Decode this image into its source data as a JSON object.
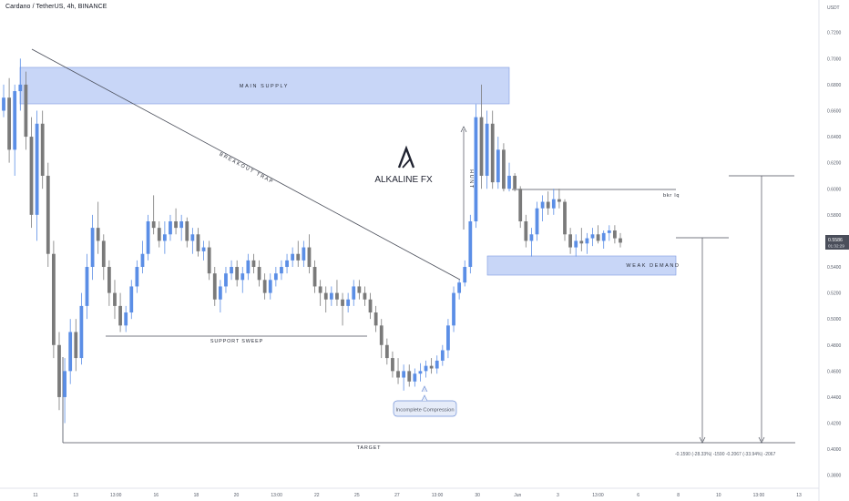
{
  "header": {
    "title": "Cardano / TetherUS, 4h, BINANCE"
  },
  "axis": {
    "currency": "USDT"
  },
  "chart_data": {
    "type": "candlestick",
    "symbol": "Cardano / TetherUS",
    "interval": "4h",
    "exchange": "BINANCE",
    "ylim": [
      0.37,
      0.745
    ],
    "y_ticks": [
      "0.3800",
      "0.4000",
      "0.4200",
      "0.4400",
      "0.4600",
      "0.4800",
      "0.5000",
      "0.5200",
      "0.5400",
      "0.5600",
      "0.5800",
      "0.6000",
      "0.6200",
      "0.6400",
      "0.6600",
      "0.6800",
      "0.7000",
      "0.7200"
    ],
    "x_ticks": [
      "11",
      "13",
      "13:00",
      "16",
      "18",
      "20",
      "13:00",
      "22",
      "25",
      "27",
      "13:00",
      "30",
      "Jun",
      "3",
      "13:00",
      "6",
      "8",
      "10",
      "13:00",
      "13"
    ],
    "last_price": {
      "price": "0.5586",
      "countdown": "01:32:29",
      "value": 0.5586
    },
    "ohlc": [
      [
        0.66,
        0.68,
        0.655,
        0.67
      ],
      [
        0.67,
        0.685,
        0.62,
        0.63
      ],
      [
        0.63,
        0.68,
        0.61,
        0.675
      ],
      [
        0.675,
        0.7,
        0.66,
        0.68
      ],
      [
        0.68,
        0.69,
        0.63,
        0.64
      ],
      [
        0.64,
        0.655,
        0.57,
        0.58
      ],
      [
        0.58,
        0.66,
        0.56,
        0.65
      ],
      [
        0.65,
        0.66,
        0.6,
        0.61
      ],
      [
        0.61,
        0.62,
        0.54,
        0.55
      ],
      [
        0.55,
        0.56,
        0.47,
        0.48
      ],
      [
        0.48,
        0.49,
        0.43,
        0.44
      ],
      [
        0.44,
        0.47,
        0.42,
        0.46
      ],
      [
        0.46,
        0.5,
        0.45,
        0.49
      ],
      [
        0.49,
        0.5,
        0.46,
        0.47
      ],
      [
        0.47,
        0.52,
        0.465,
        0.51
      ],
      [
        0.51,
        0.55,
        0.5,
        0.54
      ],
      [
        0.54,
        0.58,
        0.53,
        0.57
      ],
      [
        0.57,
        0.59,
        0.55,
        0.56
      ],
      [
        0.56,
        0.565,
        0.53,
        0.54
      ],
      [
        0.54,
        0.545,
        0.51,
        0.52
      ],
      [
        0.52,
        0.53,
        0.5,
        0.51
      ],
      [
        0.51,
        0.52,
        0.49,
        0.495
      ],
      [
        0.495,
        0.51,
        0.49,
        0.505
      ],
      [
        0.505,
        0.53,
        0.5,
        0.525
      ],
      [
        0.525,
        0.545,
        0.52,
        0.54
      ],
      [
        0.54,
        0.56,
        0.535,
        0.55
      ],
      [
        0.55,
        0.58,
        0.545,
        0.575
      ],
      [
        0.575,
        0.595,
        0.565,
        0.57
      ],
      [
        0.57,
        0.575,
        0.555,
        0.56
      ],
      [
        0.56,
        0.575,
        0.55,
        0.565
      ],
      [
        0.565,
        0.58,
        0.56,
        0.575
      ],
      [
        0.575,
        0.585,
        0.565,
        0.57
      ],
      [
        0.57,
        0.58,
        0.56,
        0.575
      ],
      [
        0.575,
        0.578,
        0.555,
        0.56
      ],
      [
        0.56,
        0.57,
        0.55,
        0.565
      ],
      [
        0.565,
        0.57,
        0.548,
        0.552
      ],
      [
        0.552,
        0.56,
        0.545,
        0.555
      ],
      [
        0.555,
        0.56,
        0.53,
        0.535
      ],
      [
        0.535,
        0.54,
        0.51,
        0.515
      ],
      [
        0.515,
        0.53,
        0.505,
        0.525
      ],
      [
        0.525,
        0.54,
        0.52,
        0.535
      ],
      [
        0.535,
        0.545,
        0.53,
        0.54
      ],
      [
        0.54,
        0.545,
        0.525,
        0.53
      ],
      [
        0.53,
        0.54,
        0.52,
        0.535
      ],
      [
        0.535,
        0.55,
        0.53,
        0.545
      ],
      [
        0.545,
        0.55,
        0.535,
        0.54
      ],
      [
        0.54,
        0.545,
        0.525,
        0.53
      ],
      [
        0.53,
        0.535,
        0.515,
        0.52
      ],
      [
        0.52,
        0.535,
        0.515,
        0.53
      ],
      [
        0.53,
        0.54,
        0.525,
        0.535
      ],
      [
        0.535,
        0.545,
        0.53,
        0.54
      ],
      [
        0.54,
        0.55,
        0.535,
        0.545
      ],
      [
        0.545,
        0.555,
        0.54,
        0.55
      ],
      [
        0.55,
        0.56,
        0.54,
        0.545
      ],
      [
        0.545,
        0.56,
        0.54,
        0.555
      ],
      [
        0.555,
        0.565,
        0.535,
        0.54
      ],
      [
        0.54,
        0.545,
        0.52,
        0.525
      ],
      [
        0.525,
        0.53,
        0.51,
        0.52
      ],
      [
        0.52,
        0.525,
        0.505,
        0.515
      ],
      [
        0.515,
        0.525,
        0.51,
        0.52
      ],
      [
        0.52,
        0.53,
        0.51,
        0.515
      ],
      [
        0.515,
        0.52,
        0.495,
        0.51
      ],
      [
        0.51,
        0.52,
        0.505,
        0.515
      ],
      [
        0.515,
        0.53,
        0.51,
        0.525
      ],
      [
        0.525,
        0.53,
        0.515,
        0.52
      ],
      [
        0.52,
        0.525,
        0.51,
        0.515
      ],
      [
        0.515,
        0.52,
        0.5,
        0.505
      ],
      [
        0.505,
        0.51,
        0.49,
        0.495
      ],
      [
        0.495,
        0.5,
        0.47,
        0.48
      ],
      [
        0.48,
        0.485,
        0.465,
        0.47
      ],
      [
        0.47,
        0.475,
        0.455,
        0.46
      ],
      [
        0.46,
        0.47,
        0.45,
        0.455
      ],
      [
        0.455,
        0.465,
        0.445,
        0.46
      ],
      [
        0.46,
        0.465,
        0.448,
        0.452
      ],
      [
        0.452,
        0.462,
        0.448,
        0.458
      ],
      [
        0.458,
        0.466,
        0.452,
        0.46
      ],
      [
        0.46,
        0.468,
        0.455,
        0.464
      ],
      [
        0.464,
        0.47,
        0.458,
        0.462
      ],
      [
        0.462,
        0.472,
        0.458,
        0.468
      ],
      [
        0.468,
        0.48,
        0.464,
        0.476
      ],
      [
        0.476,
        0.5,
        0.47,
        0.495
      ],
      [
        0.495,
        0.525,
        0.49,
        0.52
      ],
      [
        0.52,
        0.53,
        0.515,
        0.528
      ],
      [
        0.528,
        0.545,
        0.525,
        0.54
      ],
      [
        0.54,
        0.58,
        0.535,
        0.575
      ],
      [
        0.575,
        0.665,
        0.57,
        0.655
      ],
      [
        0.655,
        0.68,
        0.6,
        0.61
      ],
      [
        0.61,
        0.66,
        0.6,
        0.65
      ],
      [
        0.65,
        0.66,
        0.6,
        0.605
      ],
      [
        0.605,
        0.64,
        0.6,
        0.63
      ],
      [
        0.63,
        0.635,
        0.598,
        0.6
      ],
      [
        0.6,
        0.62,
        0.598,
        0.61
      ],
      [
        0.61,
        0.612,
        0.598,
        0.6
      ],
      [
        0.6,
        0.602,
        0.57,
        0.575
      ],
      [
        0.575,
        0.58,
        0.555,
        0.56
      ],
      [
        0.56,
        0.57,
        0.548,
        0.565
      ],
      [
        0.565,
        0.59,
        0.56,
        0.585
      ],
      [
        0.585,
        0.595,
        0.575,
        0.59
      ],
      [
        0.59,
        0.598,
        0.58,
        0.585
      ],
      [
        0.585,
        0.6,
        0.58,
        0.592
      ],
      [
        0.592,
        0.6,
        0.585,
        0.59
      ],
      [
        0.59,
        0.592,
        0.56,
        0.565
      ],
      [
        0.565,
        0.57,
        0.55,
        0.555
      ],
      [
        0.555,
        0.565,
        0.548,
        0.56
      ],
      [
        0.56,
        0.57,
        0.552,
        0.558
      ],
      [
        0.558,
        0.566,
        0.55,
        0.562
      ],
      [
        0.562,
        0.57,
        0.556,
        0.565
      ],
      [
        0.565,
        0.572,
        0.558,
        0.56
      ],
      [
        0.56,
        0.568,
        0.554,
        0.566
      ],
      [
        0.566,
        0.572,
        0.56,
        0.568
      ],
      [
        0.568,
        0.572,
        0.558,
        0.562
      ],
      [
        0.562,
        0.566,
        0.555,
        0.5586
      ]
    ],
    "annotations": [
      {
        "text": "MAIN SUPPLY",
        "kind": "zone",
        "range": [
          0.665,
          0.694
        ]
      },
      {
        "text": "BREAKOUT TRAP",
        "kind": "trendline"
      },
      {
        "text": "SUPPORT SWEEP",
        "kind": "level",
        "value": 0.485
      },
      {
        "text": "HUNT",
        "kind": "arrow"
      },
      {
        "text": "bkr lq",
        "kind": "level",
        "value": 0.5995
      },
      {
        "text": "WEAK DEMAND",
        "kind": "zone",
        "range": [
          0.5365,
          0.5515
        ]
      },
      {
        "text": "Incomplete Compression",
        "kind": "callout"
      },
      {
        "text": "TARGET",
        "kind": "level",
        "value": 0.4025
      },
      {
        "text": "-0.1590 (-28.33%) -1590   -0.2067 (-33.94%) -2067",
        "kind": "measurement"
      }
    ],
    "logo_text": "ALKALINE FX"
  },
  "colors": {
    "bull": "#5b8ee6",
    "bear": "#7a7a7a",
    "zone_fill": "#c8d6f7",
    "zone_stroke": "#7d9ae0",
    "line": "#4a4e5a",
    "price_badge_bg": "#4a4e5a"
  }
}
